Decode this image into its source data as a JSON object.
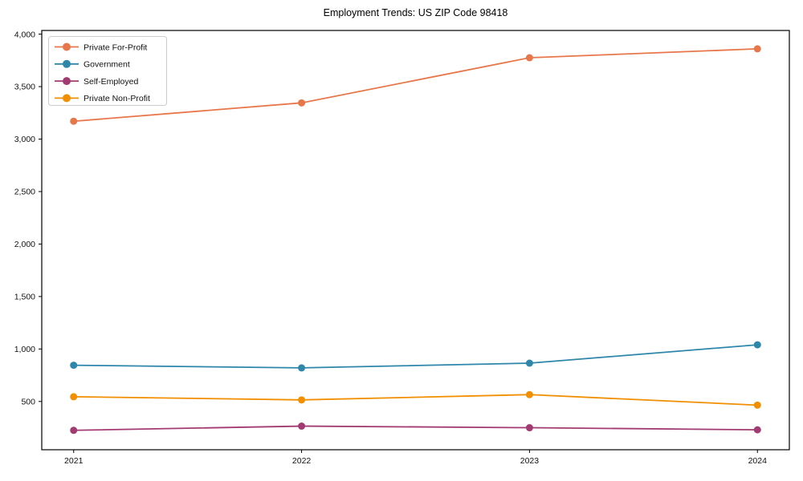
{
  "window": {
    "background": "#ffffff"
  },
  "chart_data": {
    "type": "line",
    "title": "Employment Trends: US ZIP Code 98418",
    "x": [
      2021,
      2022,
      2023,
      2024
    ],
    "x_tick_labels": [
      "2021",
      "2022",
      "2023",
      "2024"
    ],
    "series": [
      {
        "name": "Private For-Profit",
        "color": "#E8764B",
        "values": [
          3170,
          3345,
          3775,
          3860
        ]
      },
      {
        "name": "Government",
        "color": "#2E86AB",
        "values": [
          845,
          820,
          865,
          1040
        ]
      },
      {
        "name": "Self-Employed",
        "color": "#A23B72",
        "values": [
          225,
          265,
          250,
          230
        ]
      },
      {
        "name": "Private Non-Profit",
        "color": "#F18F01",
        "values": [
          545,
          515,
          565,
          465
        ]
      }
    ],
    "xlim": [
      2020.86,
      2024.14
    ],
    "ylim": [
      40,
      4035
    ],
    "yticks": [
      500,
      1000,
      1500,
      2000,
      2500,
      3000,
      3500,
      4000
    ],
    "ytick_labels": [
      "500",
      "1,000",
      "1,500",
      "2,000",
      "2,500",
      "3,000",
      "3,500",
      "4,000"
    ],
    "legend": {
      "position": "upper-left"
    },
    "grid": false,
    "axis_color": "#000000",
    "tick_label_color": "#111111",
    "legend_border_color": "#cccccc",
    "legend_background": "#ffffff"
  }
}
